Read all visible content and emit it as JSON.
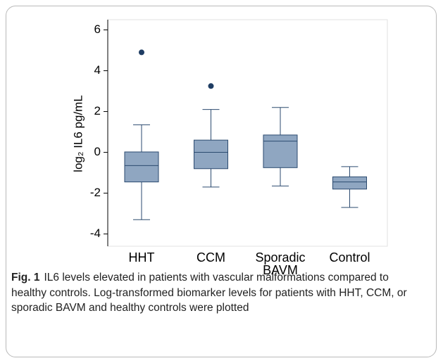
{
  "chart_data": {
    "type": "box",
    "ylabel": "log₂ IL6 pg/mL",
    "categories": [
      "HHT",
      "CCM",
      "Sporadic BAVM",
      "Control"
    ],
    "boxes": [
      {
        "whislo": -3.3,
        "q1": -1.45,
        "med": -0.65,
        "q3": 0.02,
        "whishi": 1.35,
        "fliers": [
          4.9
        ]
      },
      {
        "whislo": -1.7,
        "q1": -0.8,
        "med": 0.0,
        "q3": 0.6,
        "whishi": 2.1,
        "fliers": [
          3.25
        ]
      },
      {
        "whislo": -1.65,
        "q1": -0.75,
        "med": 0.55,
        "q3": 0.85,
        "whishi": 2.2,
        "fliers": []
      },
      {
        "whislo": -2.7,
        "q1": -1.8,
        "med": -1.45,
        "q3": -1.2,
        "whishi": -0.7,
        "fliers": []
      }
    ],
    "color": "#8fa6c1",
    "edgecolor": "#2b4a6f",
    "fliercolor": "#1f3d63",
    "ylim": [
      -4.6,
      6.5
    ],
    "yticks": [
      -4,
      -2,
      0,
      2,
      4,
      6
    ]
  },
  "caption": {
    "label": "Fig. 1",
    "text": "IL6 levels elevated in patients with vascular malformations compared to healthy controls. Log-transformed biomarker levels for patients with HHT, CCM, or sporadic BAVM and healthy controls were plotted"
  }
}
